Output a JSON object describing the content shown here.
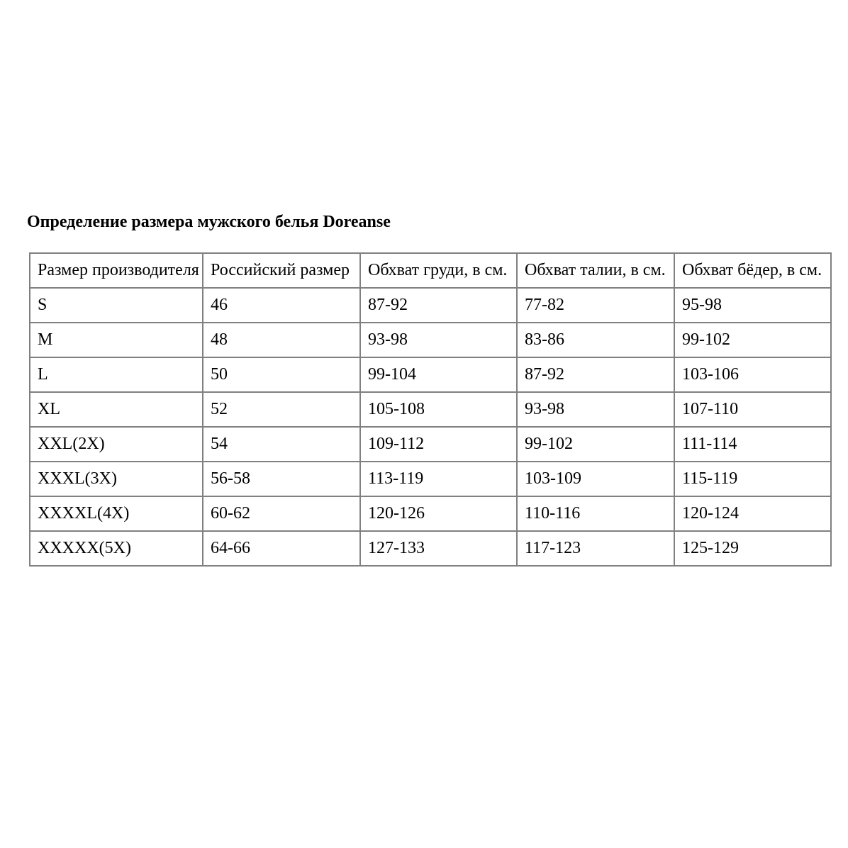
{
  "title": "Определение размера мужского белья Doreanse",
  "table": {
    "border_color": "#808080",
    "columns": [
      "Размер производителя",
      "Российский размер",
      "Обхват груди, в см.",
      "Обхват талии, в см.",
      "Обхват бёдер, в см."
    ],
    "rows": [
      [
        "S",
        "46",
        "87-92",
        "77-82",
        "95-98"
      ],
      [
        "M",
        "48",
        "93-98",
        "83-86",
        "99-102"
      ],
      [
        "L",
        "50",
        "99-104",
        "87-92",
        "103-106"
      ],
      [
        "XL",
        "52",
        "105-108",
        "93-98",
        "107-110"
      ],
      [
        "XXL(2X)",
        "54",
        "109-112",
        "99-102",
        "111-114"
      ],
      [
        "XXXL(3X)",
        "56-58",
        "113-119",
        "103-109",
        "115-119"
      ],
      [
        "XXXXL(4X)",
        "60-62",
        "120-126",
        "110-116",
        "120-124"
      ],
      [
        "XXXXX(5X)",
        "64-66",
        "127-133",
        "117-123",
        "125-129"
      ]
    ]
  }
}
